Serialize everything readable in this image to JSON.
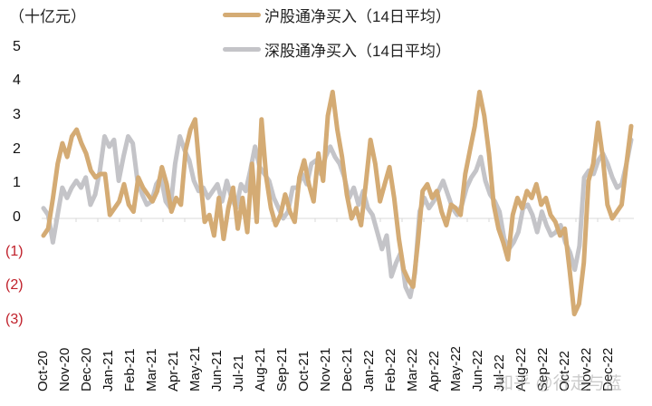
{
  "chart_data": {
    "type": "line",
    "title": "",
    "ylabel": "（十亿元）",
    "xlabel": "",
    "ylim": [
      -3,
      5
    ],
    "yticks": [
      5,
      4,
      3,
      2,
      1,
      0,
      -1,
      -2,
      -3
    ],
    "ytick_labels": [
      "5",
      "4",
      "3",
      "2",
      "1",
      "0",
      "(1)",
      "(2)",
      "(3)"
    ],
    "grid": false,
    "legend_position": "top",
    "categories": [
      "Oct-20",
      "Nov-20",
      "Dec-20",
      "Jan-21",
      "Feb-21",
      "Mar-21",
      "Apr-21",
      "May-21",
      "Jun-21",
      "Jul-21",
      "Aug-21",
      "Sep-21",
      "Oct-21",
      "Nov-21",
      "Dec-21",
      "Jan-22",
      "Feb-22",
      "Mar-22",
      "Apr-22",
      "May-22",
      "Jun-22",
      "Jul-22",
      "Aug-22",
      "Sep-22",
      "Oct-22",
      "Nov-22",
      "Dec-22"
    ],
    "series": [
      {
        "name": "沪股通净买入（14日平均）",
        "color": "#d4ab74",
        "values": [
          -0.5,
          -0.3,
          0.6,
          1.6,
          2.2,
          1.8,
          2.4,
          2.6,
          2.2,
          1.9,
          1.4,
          1.2,
          1.3,
          1.3,
          0.1,
          0.3,
          0.5,
          1.0,
          0.4,
          0.2,
          1.2,
          0.9,
          0.7,
          0.5,
          0.8,
          1.5,
          1.0,
          0.2,
          0.6,
          0.4,
          2.0,
          2.6,
          2.9,
          1.3,
          -0.1,
          0.1,
          -0.5,
          0.6,
          -0.6,
          0.3,
          0.9,
          -0.3,
          0.6,
          -0.4,
          1.6,
          -0.1,
          2.9,
          1.2,
          0.3,
          -0.2,
          0.1,
          0.7,
          0.2,
          -0.1,
          1.2,
          1.7,
          1.0,
          0.5,
          1.9,
          1.1,
          3.0,
          3.7,
          2.6,
          1.8,
          0.7,
          0.0,
          0.3,
          -0.2,
          1.0,
          2.3,
          1.6,
          0.5,
          1.0,
          1.5,
          0.6,
          -0.6,
          -1.5,
          -1.8,
          -2.0,
          -0.7,
          0.8,
          1.0,
          0.6,
          0.8,
          0.2,
          -0.2,
          0.4,
          0.3,
          0.1,
          1.3,
          2.0,
          2.7,
          3.7,
          3.0,
          1.9,
          0.4,
          -0.3,
          -0.7,
          -1.2,
          0.1,
          0.6,
          0.3,
          0.8,
          0.6,
          1.0,
          0.4,
          0.6,
          0.1,
          -0.1,
          -0.5,
          -0.3,
          -1.5,
          -2.8,
          -2.5,
          -1.3,
          1.1,
          1.6,
          2.8,
          1.8,
          0.4,
          0.0,
          0.2,
          0.4,
          1.6,
          2.7
        ]
      },
      {
        "name": "深股通净买入（14日平均）",
        "color": "#c4c4c8",
        "values": [
          0.3,
          0.1,
          -0.7,
          0.1,
          0.9,
          0.6,
          0.9,
          1.1,
          0.9,
          1.2,
          0.4,
          0.7,
          1.4,
          2.4,
          2.1,
          2.3,
          1.1,
          1.8,
          2.4,
          2.2,
          1.1,
          0.7,
          0.4,
          0.5,
          1.0,
          1.2,
          0.5,
          0.3,
          1.6,
          2.4,
          2.0,
          1.7,
          1.1,
          0.8,
          0.9,
          0.6,
          0.8,
          1.0,
          0.5,
          1.1,
          0.6,
          0.3,
          1.0,
          0.8,
          1.4,
          2.1,
          1.5,
          1.3,
          1.1,
          0.6,
          0.3,
          0.0,
          0.2,
          0.9,
          0.9,
          1.3,
          1.0,
          1.6,
          1.7,
          1.3,
          1.8,
          2.1,
          1.8,
          1.6,
          1.2,
          0.6,
          0.9,
          0.4,
          0.8,
          0.3,
          0.1,
          -0.4,
          -0.9,
          -0.5,
          -1.7,
          -1.3,
          -1.0,
          -2.0,
          -2.3,
          -1.6,
          0.2,
          0.6,
          0.3,
          0.5,
          0.8,
          1.1,
          0.7,
          0.3,
          0.1,
          0.4,
          0.9,
          1.2,
          1.4,
          1.8,
          1.1,
          0.7,
          0.5,
          0.2,
          -0.6,
          -0.9,
          -0.7,
          -0.4,
          0.3,
          0.4,
          0.1,
          -0.4,
          0.2,
          -0.2,
          -0.5,
          -0.4,
          -0.2,
          -0.7,
          -1.0,
          -1.5,
          -0.8,
          1.2,
          1.4,
          1.3,
          1.7,
          1.9,
          1.6,
          1.2,
          0.9,
          1.0,
          1.6,
          2.3
        ]
      }
    ]
  },
  "header": {
    "unit_label": "（十亿元）"
  },
  "legend": [
    {
      "label": "沪股通净买入（14日平均）",
      "color": "#d4ab74"
    },
    {
      "label": "深股通净买入（14日平均）",
      "color": "#c4c4c8"
    }
  ],
  "watermark": "知乎 @行走与蓝"
}
